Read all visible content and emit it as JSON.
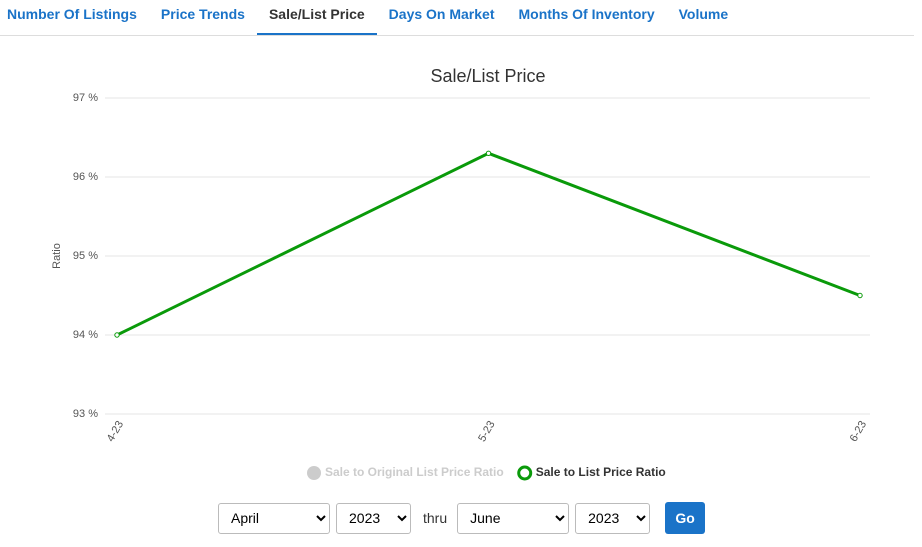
{
  "tabs": [
    "Number Of Listings",
    "Price Trends",
    "Sale/List Price",
    "Days On Market",
    "Months Of Inventory",
    "Volume"
  ],
  "active_tab": 2,
  "chart_data": {
    "type": "line",
    "title": "Sale/List Price",
    "y_label": "Ratio",
    "categories": [
      "4-23",
      "5-23",
      "6-23"
    ],
    "series": [
      {
        "name": "Sale to Original List Price Ratio",
        "color": "#cccccc",
        "hidden": true,
        "values": [
          null,
          null,
          null
        ]
      },
      {
        "name": "Sale to List Price Ratio",
        "color": "#0a9a0a",
        "values": [
          94,
          96.3,
          94.5
        ]
      }
    ],
    "ylim": [
      93,
      97
    ],
    "yticks": [
      {
        "value": 93,
        "label": "93 %"
      },
      {
        "value": 94,
        "label": "94 %"
      },
      {
        "value": 95,
        "label": "95 %"
      },
      {
        "value": 96,
        "label": "96 %"
      },
      {
        "value": 97,
        "label": "97 %"
      }
    ],
    "grid": true
  },
  "controls": {
    "from_month": "April",
    "from_year": "2023",
    "thru": "thru",
    "to_month": "June",
    "to_year": "2023",
    "button": "Go"
  }
}
